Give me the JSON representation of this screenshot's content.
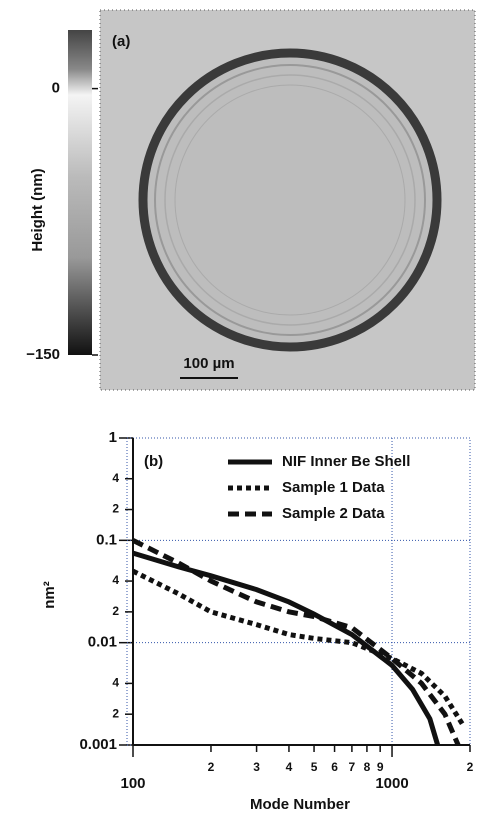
{
  "chart_data": [
    {
      "type": "image",
      "label": "(a)",
      "colorbar_label": "Height (nm)",
      "clim": [
        -150,
        33
      ],
      "colorbar_ticks": [
        0,
        {
          "value": -150,
          "label": "−150"
        }
      ],
      "scale_bar": "100 µm"
    },
    {
      "type": "line",
      "label": "(b)",
      "xlabel": "Mode Number",
      "ylabel": "nm²",
      "xscale": "log",
      "yscale": "log",
      "grid": true,
      "xlim": [
        100,
        2000
      ],
      "ylim": [
        0.001,
        1
      ],
      "xticks": [
        100,
        {
          "value": 200,
          "label": "2"
        },
        {
          "value": 300,
          "label": "3"
        },
        {
          "value": 400,
          "label": "4"
        },
        {
          "value": 500,
          "label": "5"
        },
        {
          "value": 600,
          "label": "6"
        },
        {
          "value": 700,
          "label": "7"
        },
        {
          "value": 800,
          "label": "8"
        },
        {
          "value": 900,
          "label": "9"
        },
        1000,
        {
          "value": 2000,
          "label": "2"
        }
      ],
      "yticks": [
        1,
        {
          "value": 0.4,
          "label": "4"
        },
        {
          "value": 0.2,
          "label": "2"
        },
        0.1,
        {
          "value": 0.04,
          "label": "4"
        },
        {
          "value": 0.02,
          "label": "2"
        },
        0.01,
        {
          "value": 0.004,
          "label": "4"
        },
        {
          "value": 0.002,
          "label": "2"
        },
        0.001
      ],
      "series": [
        {
          "name": "NIF Inner Be Shell",
          "color": "#111111",
          "dash": "solid",
          "x": [
            100,
            150,
            200,
            300,
            400,
            500,
            700,
            1000,
            1200,
            1400,
            1500
          ],
          "values": [
            0.075,
            0.055,
            0.045,
            0.033,
            0.025,
            0.019,
            0.012,
            0.006,
            0.0035,
            0.0018,
            0.001
          ]
        },
        {
          "name": "Sample 1 Data",
          "color": "#111111",
          "dash": "dot",
          "x": [
            100,
            150,
            200,
            300,
            400,
            500,
            700,
            1000,
            1300,
            1600,
            1900
          ],
          "values": [
            0.05,
            0.03,
            0.02,
            0.015,
            0.012,
            0.011,
            0.01,
            0.007,
            0.005,
            0.003,
            0.0015
          ]
        },
        {
          "name": "Sample 2 Data",
          "color": "#111111",
          "dash": "dash",
          "x": [
            100,
            150,
            200,
            300,
            400,
            500,
            700,
            1000,
            1300,
            1600,
            1800
          ],
          "values": [
            0.1,
            0.06,
            0.04,
            0.025,
            0.02,
            0.018,
            0.014,
            0.007,
            0.004,
            0.002,
            0.001
          ]
        }
      ]
    }
  ]
}
